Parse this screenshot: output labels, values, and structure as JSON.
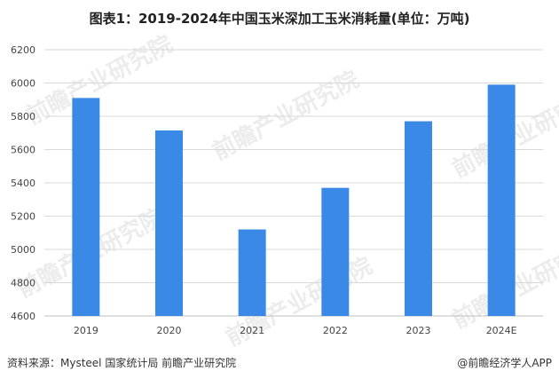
{
  "title": "图表1：2019-2024年中国玉米深加工玉米消耗量(单位：万吨)",
  "source": "资料来源：Mysteel 国家统计局 前瞻产业研究院",
  "brand": "@前瞻经济学人APP",
  "watermark": "前瞻产业研究院",
  "colors": {
    "bar": "#3b89e6",
    "grid": "#d9d9d9",
    "axis": "#bfbfbf"
  },
  "chart_data": {
    "type": "bar",
    "title": "图表1：2019-2024年中国玉米深加工玉米消耗量(单位：万吨)",
    "xlabel": "",
    "ylabel": "",
    "categories": [
      "2019",
      "2020",
      "2021",
      "2022",
      "2023",
      "2024E"
    ],
    "values": [
      5910,
      5715,
      5120,
      5370,
      5770,
      5990
    ],
    "ylim": [
      4600,
      6200
    ],
    "yticks": [
      4600,
      4800,
      5000,
      5200,
      5400,
      5600,
      5800,
      6000,
      6200
    ],
    "grid": true,
    "legend": "none"
  }
}
